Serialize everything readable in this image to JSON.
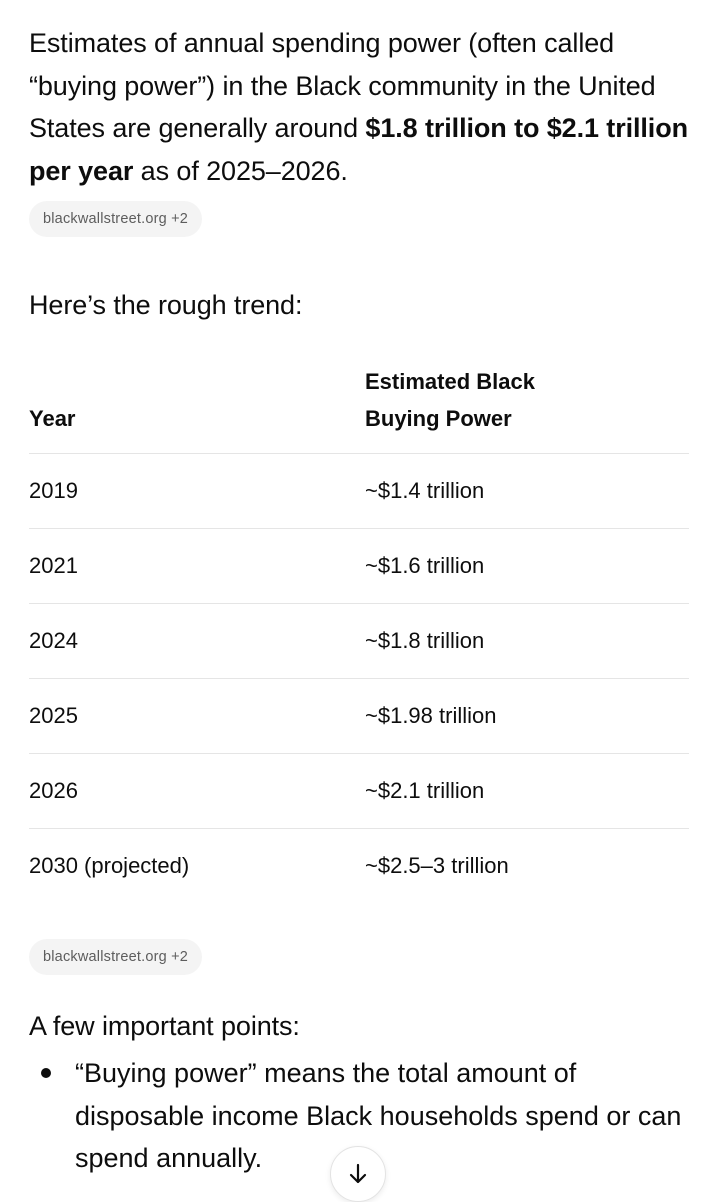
{
  "intro": {
    "text_before": "Estimates of annual spending power (often called “buying power”) in the Black community in the United States are generally around ",
    "bold": "$1.8 trillion to $2.1 trillion per year",
    "text_after": " as of 2025–2026."
  },
  "sources": [
    {
      "label": "blackwallstreet.org +2"
    },
    {
      "label": "blackwallstreet.org +2"
    }
  ],
  "trend_intro": "Here’s the rough trend:",
  "table": {
    "headers": [
      "Year",
      "Estimated Black Buying Power"
    ],
    "rows": [
      [
        "2019",
        "~$1.4 trillion"
      ],
      [
        "2021",
        "~$1.6 trillion"
      ],
      [
        "2024",
        "~$1.8 trillion"
      ],
      [
        "2025",
        "~$1.98 trillion"
      ],
      [
        "2026",
        "~$2.1 trillion"
      ],
      [
        "2030 (projected)",
        "~$2.5–3 trillion"
      ]
    ]
  },
  "points_intro": "A few important points:",
  "points": [
    "“Buying power” means the total amount of disposable income Black households spend or can spend annually."
  ],
  "scroll_button": {
    "icon": "arrow-down-icon"
  }
}
